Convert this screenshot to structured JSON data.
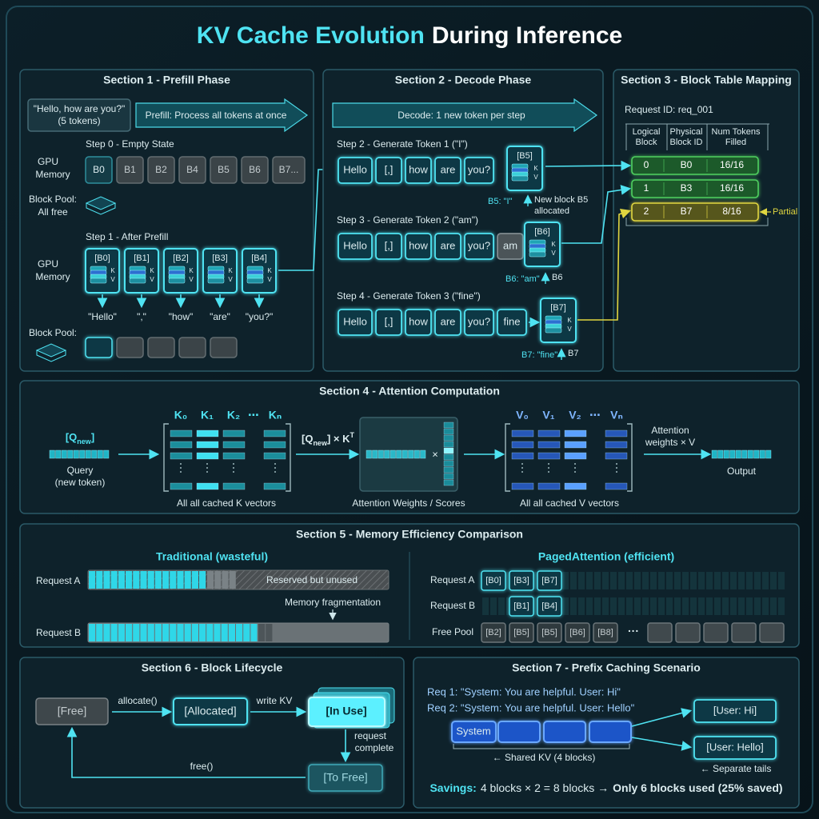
{
  "title": {
    "highlight": "KV Cache Evolution",
    "rest": "During Inference"
  },
  "kv_labels": [
    "K",
    "V"
  ],
  "section1": {
    "title": "Section 1 - Prefill Phase",
    "input": [
      "\"Hello, how are you?\"",
      "(5 tokens)"
    ],
    "arrow": "Prefill: Process all tokens at once",
    "step0": "Step 0 - Empty State",
    "gpu_memory": [
      "GPU",
      "Memory"
    ],
    "empty_blocks": [
      "B0",
      "B1",
      "B2",
      "B4",
      "B5",
      "B6",
      "B7..."
    ],
    "pool_label": [
      "Block Pool:",
      "All free"
    ],
    "step1": "Step 1 - After Prefill",
    "filled_blocks": [
      "[B0]",
      "[B1]",
      "[B2]",
      "[B3]",
      "[B4]"
    ],
    "tokens": [
      "\"Hello\"",
      "\",\"",
      "\"how\"",
      "\"are\"",
      "\"you?\""
    ],
    "pool_label2": "Block Pool:"
  },
  "section2": {
    "title": "Section 2 - Decode Phase",
    "arrow": "Decode: 1 new token per step",
    "steps": [
      {
        "label": "Step 2 - Generate Token 1 (\"I\")",
        "tokens": [
          "Hello",
          "[,]",
          "how",
          "are",
          "you?"
        ],
        "block": "[B5]",
        "note": "B5: \"I\"",
        "note_right": [
          "New block B5",
          "allocated"
        ]
      },
      {
        "label": "Step 3 - Generate Token 2 (\"am\")",
        "tokens": [
          "Hello",
          "[,]",
          "how",
          "are",
          "you?",
          "am"
        ],
        "block": "[B6]",
        "note": "B6: \"am\"",
        "note_right": [
          "B6"
        ]
      },
      {
        "label": "Step 4 - Generate Token 3 (\"fine\")",
        "tokens": [
          "Hello",
          "[,]",
          "how",
          "are",
          "you?",
          "fine"
        ],
        "block": "[B7]",
        "note": "B7: \"fine\"",
        "note_right": [
          "B7"
        ]
      }
    ]
  },
  "section3": {
    "title": "Section 3 - Block Table Mapping",
    "request": "Request ID: req_001",
    "headers": [
      [
        "Logical",
        "Block"
      ],
      [
        "Physical",
        "Block ID"
      ],
      [
        "Num Tokens",
        "Filled"
      ]
    ],
    "rows": [
      [
        "0",
        "B0",
        "16/16"
      ],
      [
        "1",
        "B3",
        "16/16"
      ],
      [
        "2",
        "B7",
        "8/16"
      ]
    ],
    "partial": "Partial"
  },
  "section4": {
    "title": "Section 4 - Attention Computation",
    "query_label": {
      "open": "[Q",
      "sub": "new",
      "close": "]"
    },
    "query": [
      "Query",
      "(new token)"
    ],
    "k_headers": [
      "K₀",
      "K₁",
      "K₂",
      "⋯",
      "Kₙ"
    ],
    "k_caption": "All all cached K vectors",
    "formula": {
      "open": "[Q",
      "sub": "new",
      "close": "] × K",
      "sup": "T"
    },
    "times": "×",
    "weights_caption": "Attention Weights / Scores",
    "v_headers": [
      "V₀",
      "V₁",
      "V₂",
      "⋯",
      "Vₙ"
    ],
    "v_caption": "All all cached V vectors",
    "attn": [
      "Attention",
      "weights × V"
    ],
    "output": "Output"
  },
  "section5": {
    "title": "Section 5 - Memory Efficiency Comparison",
    "traditional": {
      "title": "Traditional (wasteful)",
      "request_a": "Request A",
      "reserved": "Reserved but unused",
      "fragmentation": "Memory fragmentation",
      "request_b": "Request B"
    },
    "paged": {
      "title": "PagedAttention (efficient)",
      "request_a": "Request A",
      "blocks_a": [
        "[B0]",
        "[B3]",
        "[B7]"
      ],
      "request_b": "Request B",
      "blocks_b": [
        "[B1]",
        "[B4]"
      ],
      "free_pool": "Free Pool",
      "blocks_free": [
        "[B2]",
        "[B5]",
        "[B5]",
        "[B6]",
        "[B8]"
      ],
      "ellipsis": "···"
    }
  },
  "section6": {
    "title": "Section 6 - Block Lifecycle",
    "free": "[Free]",
    "allocate": "allocate()",
    "allocated": "[Allocated]",
    "write": "write KV",
    "in_use": "[In Use]",
    "complete": [
      "request",
      "complete"
    ],
    "to_free": "[To Free]",
    "free_call": "free()"
  },
  "section7": {
    "title": "Section 7 - Prefix Caching Scenario",
    "req1": "Req 1: \"System: You are helpful. User: Hi\"",
    "req2": "Req 2: \"System: You are helpful. User: Hello\"",
    "system": "System",
    "user_hi": "[User: Hi]",
    "user_hello": "[User: Hello]",
    "shared": "← Shared KV (4 blocks)",
    "tails": "← Separate tails",
    "savings": {
      "label": "Savings:",
      "calc": "4 blocks × 2 = 8 blocks →",
      "result": "Only 6 blocks used (25% saved)"
    }
  }
}
